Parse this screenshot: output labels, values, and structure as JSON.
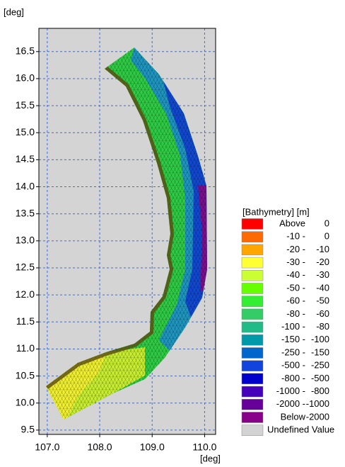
{
  "chart_data": {
    "type": "map",
    "xlabel": "[deg]",
    "ylabel": "[deg]",
    "xlim": [
      106.84,
      110.21
    ],
    "ylim": [
      9.42,
      16.93
    ],
    "xticks": [
      {
        "value": 107,
        "label": "107.0"
      },
      {
        "value": 108,
        "label": "108.0"
      },
      {
        "value": 109,
        "label": "109.0"
      },
      {
        "value": 110,
        "label": "110.0"
      }
    ],
    "yticks": [
      9.5,
      {
        "value": 10,
        "label": "10.0"
      },
      10.5,
      {
        "value": 11,
        "label": "11.0"
      },
      11.5,
      {
        "value": 12,
        "label": "12.0"
      },
      12.5,
      {
        "value": 13,
        "label": "13.0"
      },
      13.5,
      {
        "value": 14,
        "label": "14.0"
      },
      14.5,
      {
        "value": 15,
        "label": "15.0"
      },
      15.5,
      {
        "value": 16,
        "label": "16.0"
      },
      16.5
    ],
    "grid": true,
    "legend": {
      "title": "[Bathymetry] [m]",
      "entries": [
        {
          "left": "Above",
          "right": "0",
          "color": "#ff0000"
        },
        {
          "left": "-10 -",
          "right": "0",
          "color": "#ff6a00"
        },
        {
          "left": "-20 -",
          "right": "-10",
          "color": "#ffa500"
        },
        {
          "left": "-30 -",
          "right": "-20",
          "color": "#ffff33"
        },
        {
          "left": "-40 -",
          "right": "-30",
          "color": "#ccff33"
        },
        {
          "left": "-50 -",
          "right": "-40",
          "color": "#66ff00"
        },
        {
          "left": "-60 -",
          "right": "-50",
          "color": "#33ee33"
        },
        {
          "left": "-80 -",
          "right": "-60",
          "color": "#33cc66"
        },
        {
          "left": "-100 -",
          "right": "-80",
          "color": "#22bb88"
        },
        {
          "left": "-150 -",
          "right": "-100",
          "color": "#0099aa"
        },
        {
          "left": "-250 -",
          "right": "-150",
          "color": "#0066cc"
        },
        {
          "left": "-500 -",
          "right": "-250",
          "color": "#1144dd"
        },
        {
          "left": "-800 -",
          "right": "-500",
          "color": "#0000cc"
        },
        {
          "left": "-1000 -",
          "right": "-800",
          "color": "#4400bb"
        },
        {
          "left": "-2000 -",
          "right": "-1000",
          "color": "#660099"
        },
        {
          "left": "Below",
          "right": "-2000",
          "color": "#880088"
        },
        {
          "left": "Undefined Value",
          "color": "#d3d3d3"
        }
      ]
    }
  }
}
